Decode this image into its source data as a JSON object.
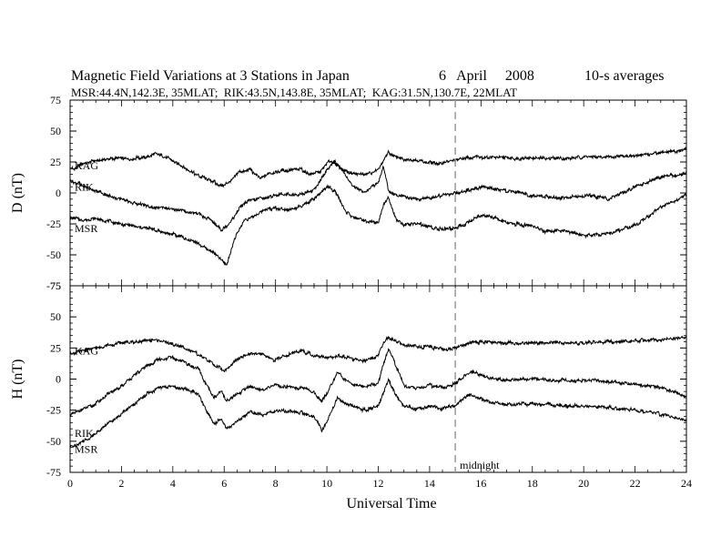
{
  "chart_data": {
    "type": "line",
    "title": "Magnetic Field Variations at 3 Stations in Japan",
    "date": "6   April     2008",
    "average": "10-s averages",
    "subtitle": "MSR:44.4N,142.3E, 35MLAT;  RIK:43.5N,143.8E, 35MLAT;  KAG:31.5N,130.7E, 22MLAT",
    "xlabel": "Universal Time",
    "xlim": [
      0,
      24
    ],
    "xticks": [
      0,
      2,
      4,
      6,
      8,
      10,
      12,
      14,
      16,
      18,
      20,
      22,
      24
    ],
    "annotation": {
      "text": "midnight",
      "x": 15
    },
    "colors": {
      "line": "#000000",
      "midnight_line": "#999999"
    },
    "panels": [
      {
        "ylabel": "D (nT)",
        "ylim": [
          -75,
          75
        ],
        "yticks": [
          75,
          50,
          25,
          0,
          -25,
          -50,
          -75
        ],
        "series": [
          {
            "name": "KAG",
            "x": [
              0,
              0.5,
              1,
              1.5,
              2,
              2.5,
              3,
              3.3,
              3.6,
              4,
              4.5,
              5,
              5.5,
              5.9,
              6.2,
              6.6,
              7,
              7.4,
              7.8,
              8.2,
              8.6,
              9,
              9.4,
              9.8,
              10.05,
              10.3,
              10.6,
              11,
              11.5,
              12,
              12.2,
              12.4,
              12.6,
              13,
              13.5,
              14,
              14.5,
              15,
              15.5,
              16,
              17,
              18,
              19,
              20,
              21,
              22,
              23,
              24
            ],
            "y": [
              19,
              23,
              26,
              27,
              28,
              28,
              29,
              31,
              30,
              26,
              19,
              14,
              10,
              6,
              8,
              17,
              19,
              12,
              16,
              18,
              18,
              19,
              15,
              18,
              26,
              24,
              19,
              15,
              15,
              18,
              26,
              33,
              30,
              27,
              26,
              25,
              24,
              26,
              29,
              29,
              28,
              28,
              28,
              29,
              29,
              30,
              32,
              35
            ]
          },
          {
            "name": "RIK",
            "x": [
              0,
              0.5,
              1,
              1.5,
              2,
              2.5,
              3,
              3.5,
              4,
              4.5,
              5,
              5.5,
              5.9,
              6.2,
              6.6,
              7,
              7.5,
              8,
              8.5,
              9,
              9.5,
              10,
              10.3,
              10.7,
              11,
              11.5,
              12,
              12.2,
              12.4,
              12.7,
              13,
              13.5,
              14,
              14.5,
              15,
              15.5,
              16,
              17,
              18,
              19,
              20,
              20.5,
              21,
              22,
              23,
              24
            ],
            "y": [
              10,
              6,
              2,
              -2,
              -5,
              -8,
              -11,
              -12,
              -13,
              -15,
              -17,
              -22,
              -30,
              -25,
              -12,
              -6,
              -4,
              -2,
              -1,
              -1,
              2,
              18,
              26,
              16,
              5,
              1,
              8,
              22,
              2,
              -2,
              -3,
              -5,
              -4,
              -2,
              0,
              2,
              5,
              2,
              -2,
              -4,
              -2,
              -3,
              -5,
              5,
              13,
              16
            ]
          },
          {
            "name": "MSR",
            "x": [
              0,
              0.5,
              1,
              1.5,
              2,
              2.5,
              3,
              3.5,
              4,
              4.5,
              5,
              5.5,
              5.8,
              6.1,
              6.4,
              6.8,
              7.2,
              7.6,
              8,
              8.5,
              9,
              9.5,
              10,
              10.3,
              10.7,
              11,
              11.5,
              12,
              12.2,
              12.4,
              12.7,
              13,
              13.5,
              14,
              14.5,
              15,
              15.5,
              16,
              16.5,
              17,
              18,
              18.5,
              19,
              20,
              20.5,
              21,
              22,
              23,
              24
            ],
            "y": [
              -20,
              -22,
              -20,
              -23,
              -25,
              -27,
              -28,
              -31,
              -33,
              -37,
              -41,
              -47,
              -53,
              -58,
              -37,
              -22,
              -18,
              -14,
              -12,
              -13,
              -11,
              -5,
              5,
              2,
              -14,
              -20,
              -23,
              -24,
              -10,
              -3,
              -22,
              -26,
              -25,
              -27,
              -30,
              -28,
              -24,
              -18,
              -20,
              -24,
              -27,
              -31,
              -30,
              -34,
              -34,
              -33,
              -26,
              -12,
              -2
            ]
          }
        ]
      },
      {
        "ylabel": "H (nT)",
        "ylim": [
          -75,
          75
        ],
        "yticks": [
          75,
          50,
          25,
          0,
          -25,
          -50,
          -75
        ],
        "series": [
          {
            "name": "KAG",
            "x": [
              0,
              0.5,
              1,
              1.5,
              2,
              2.5,
              3,
              3.5,
              4,
              4.5,
              5,
              5.5,
              6,
              6.5,
              7,
              7.5,
              7.9,
              8.3,
              8.7,
              9,
              9.5,
              10,
              10.5,
              11,
              11.5,
              12,
              12.2,
              12.4,
              12.6,
              13,
              13.5,
              14,
              14.5,
              15,
              15.5,
              16,
              17,
              18,
              19,
              20,
              21,
              22,
              23,
              24
            ],
            "y": [
              20,
              23,
              25,
              27,
              29,
              30,
              31,
              31,
              28,
              25,
              20,
              13,
              7,
              15,
              21,
              20,
              15,
              18,
              21,
              23,
              19,
              17,
              19,
              16,
              15,
              19,
              29,
              34,
              31,
              27,
              26,
              26,
              24,
              25,
              29,
              30,
              29,
              29,
              29,
              29,
              30,
              31,
              32,
              34
            ]
          },
          {
            "name": "RIK",
            "x": [
              0,
              0.5,
              1,
              1.5,
              2,
              2.5,
              3,
              3.5,
              4,
              4.5,
              5,
              5.3,
              5.6,
              5.9,
              6.1,
              6.5,
              7,
              7.5,
              8,
              8.5,
              9,
              9.5,
              9.8,
              10.1,
              10.4,
              10.7,
              11,
              11.5,
              12,
              12.2,
              12.4,
              12.6,
              13,
              13.5,
              14,
              14.5,
              15,
              15.3,
              15.6,
              16,
              16.5,
              17,
              18,
              19,
              20,
              21,
              22,
              23,
              23.5,
              24
            ],
            "y": [
              -29,
              -25,
              -20,
              -12,
              -6,
              3,
              11,
              16,
              17,
              13,
              8,
              -5,
              -15,
              -10,
              -18,
              -12,
              -6,
              -9,
              -5,
              -6,
              -7,
              -10,
              -18,
              -8,
              6,
              0,
              -4,
              -6,
              -4,
              12,
              25,
              15,
              -5,
              -8,
              -5,
              -7,
              -4,
              2,
              6,
              3,
              0,
              -1,
              0,
              -1,
              -1,
              -2,
              -4,
              -7,
              -10,
              -14
            ]
          },
          {
            "name": "MSR",
            "x": [
              0,
              0.5,
              1,
              1.5,
              2,
              2.5,
              3,
              3.5,
              4,
              4.5,
              5,
              5.3,
              5.6,
              5.9,
              6.1,
              6.5,
              7,
              7.5,
              8,
              8.5,
              9,
              9.5,
              9.8,
              10.1,
              10.4,
              10.7,
              11,
              11.5,
              12,
              12.2,
              12.4,
              12.6,
              13,
              13.5,
              14,
              14.5,
              15,
              15.3,
              15.6,
              16,
              16.5,
              17,
              18,
              19,
              20,
              21,
              22,
              23,
              23.5,
              24
            ],
            "y": [
              -55,
              -50,
              -44,
              -35,
              -28,
              -20,
              -12,
              -7,
              -6,
              -8,
              -12,
              -25,
              -36,
              -32,
              -40,
              -34,
              -26,
              -29,
              -25,
              -26,
              -27,
              -30,
              -41,
              -30,
              -15,
              -20,
              -22,
              -25,
              -22,
              -12,
              0,
              -10,
              -22,
              -24,
              -22,
              -24,
              -21,
              -15,
              -13,
              -16,
              -19,
              -20,
              -20,
              -21,
              -22,
              -23,
              -25,
              -28,
              -31,
              -34
            ]
          }
        ]
      }
    ]
  }
}
